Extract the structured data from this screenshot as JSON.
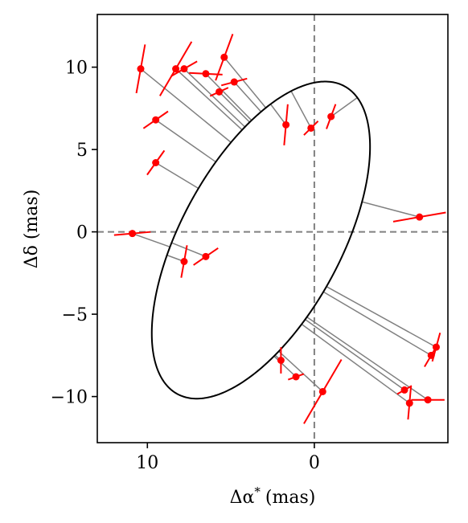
{
  "chart_data": {
    "type": "scatter",
    "xlabel_base": "Δα",
    "xlabel_sup": "*",
    "xlabel_unit": "(mas)",
    "ylabel": "Δδ (mas)",
    "xlim": [
      13.0,
      -8.0
    ],
    "ylim": [
      -12.8,
      13.2
    ],
    "x_reversed": true,
    "xticks": [
      10,
      0
    ],
    "xtick_labels": [
      "10",
      "0"
    ],
    "yticks": [
      10,
      5,
      0,
      -5,
      -10
    ],
    "ytick_labels": [
      "10",
      "5",
      "0",
      "−5",
      "−10"
    ],
    "reference_lines": {
      "x": 0,
      "y": 0,
      "style": "dashed",
      "color": "#808080"
    },
    "colors": {
      "points": "#ff0000",
      "orbit": "#000000",
      "residual": "#808080",
      "axes": "#000000"
    },
    "orbit": {
      "center": [
        3.2,
        -0.5
      ],
      "semi_axes": [
        4.8,
        10.6
      ],
      "rotation_deg": 28
    },
    "points": [
      {
        "x": 10.4,
        "y": 9.9,
        "err_angle": 80,
        "err_len": 3.0
      },
      {
        "x": 8.3,
        "y": 9.9,
        "err_angle": 60,
        "err_len": 3.8
      },
      {
        "x": 7.8,
        "y": 9.9,
        "err_angle": 30,
        "err_len": 1.8
      },
      {
        "x": 6.5,
        "y": 9.6,
        "err_angle": -3,
        "err_len": 2.0
      },
      {
        "x": 5.4,
        "y": 10.6,
        "err_angle": 70,
        "err_len": 3.0
      },
      {
        "x": 4.8,
        "y": 9.1,
        "err_angle": 15,
        "err_len": 1.6
      },
      {
        "x": 5.7,
        "y": 8.5,
        "err_angle": 25,
        "err_len": 1.2
      },
      {
        "x": 9.5,
        "y": 6.8,
        "err_angle": 35,
        "err_len": 1.8
      },
      {
        "x": 1.7,
        "y": 6.5,
        "err_angle": 85,
        "err_len": 2.5
      },
      {
        "x": 0.2,
        "y": 6.3,
        "err_angle": 45,
        "err_len": 1.2
      },
      {
        "x": -1.0,
        "y": 7.0,
        "err_angle": 70,
        "err_len": 1.6
      },
      {
        "x": 9.5,
        "y": 4.2,
        "err_angle": 55,
        "err_len": 1.8
      },
      {
        "x": -6.3,
        "y": 0.9,
        "err_angle": 10,
        "err_len": 3.2
      },
      {
        "x": 10.9,
        "y": -0.1,
        "err_angle": 5,
        "err_len": 2.2
      },
      {
        "x": 7.8,
        "y": -1.8,
        "err_angle": 80,
        "err_len": 2.0
      },
      {
        "x": 6.5,
        "y": -1.5,
        "err_angle": 35,
        "err_len": 1.8
      },
      {
        "x": 2.0,
        "y": -7.8,
        "err_angle": 90,
        "err_len": 1.6
      },
      {
        "x": 1.1,
        "y": -8.8,
        "err_angle": 20,
        "err_len": 1.0
      },
      {
        "x": -0.5,
        "y": -9.7,
        "err_angle": 60,
        "err_len": 4.5
      },
      {
        "x": -5.4,
        "y": -9.6,
        "err_angle": 30,
        "err_len": 1.0
      },
      {
        "x": -5.7,
        "y": -10.4,
        "err_angle": 85,
        "err_len": 2.0
      },
      {
        "x": -6.8,
        "y": -10.2,
        "err_angle": 0,
        "err_len": 2.0
      },
      {
        "x": -7.0,
        "y": -7.5,
        "err_angle": 60,
        "err_len": 1.6
      },
      {
        "x": -7.3,
        "y": -7.0,
        "err_angle": 75,
        "err_len": 1.8
      }
    ]
  }
}
